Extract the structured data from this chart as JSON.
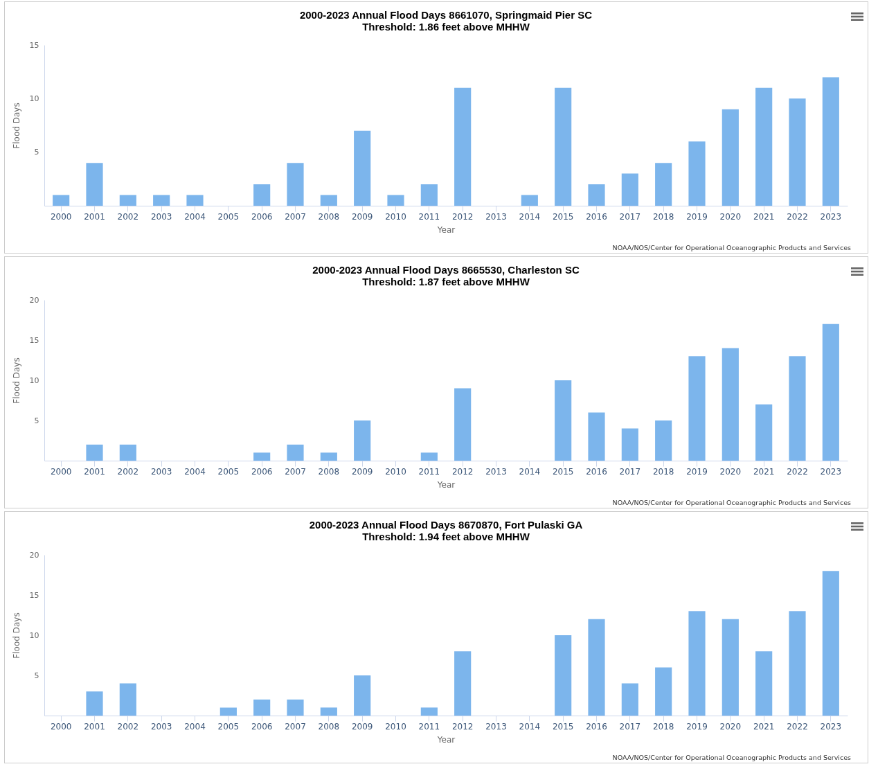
{
  "chart_data": [
    {
      "type": "bar",
      "title": "2000-2023 Annual Flood Days 8661070, Springmaid Pier SC",
      "subtitle": "Threshold: 1.86 feet above MHHW",
      "xlabel": "Year",
      "ylabel": "Flood Days",
      "categories": [
        "2000",
        "2001",
        "2002",
        "2003",
        "2004",
        "2005",
        "2006",
        "2007",
        "2008",
        "2009",
        "2010",
        "2011",
        "2012",
        "2013",
        "2014",
        "2015",
        "2016",
        "2017",
        "2018",
        "2019",
        "2020",
        "2021",
        "2022",
        "2023"
      ],
      "values": [
        1,
        4,
        1,
        1,
        1,
        0,
        2,
        4,
        1,
        7,
        1,
        2,
        11,
        0,
        1,
        11,
        2,
        3,
        4,
        6,
        9,
        11,
        10,
        12
      ],
      "color": "#7cb5ec",
      "ylim": [
        0,
        15
      ],
      "yticks": [
        5,
        10,
        15
      ],
      "annotations": [
        "NOAA/NOS/Center for Operational Oceanographic Products and Services"
      ]
    },
    {
      "type": "bar",
      "title": "2000-2023 Annual Flood Days 8665530, Charleston SC",
      "subtitle": "Threshold: 1.87 feet above MHHW",
      "xlabel": "Year",
      "ylabel": "Flood Days",
      "categories": [
        "2000",
        "2001",
        "2002",
        "2003",
        "2004",
        "2005",
        "2006",
        "2007",
        "2008",
        "2009",
        "2010",
        "2011",
        "2012",
        "2013",
        "2014",
        "2015",
        "2016",
        "2017",
        "2018",
        "2019",
        "2020",
        "2021",
        "2022",
        "2023"
      ],
      "values": [
        0,
        2,
        2,
        0,
        0,
        0,
        1,
        2,
        1,
        5,
        0,
        1,
        9,
        0,
        0,
        10,
        6,
        4,
        5,
        13,
        14,
        7,
        13,
        17
      ],
      "color": "#7cb5ec",
      "ylim": [
        0,
        20
      ],
      "yticks": [
        5,
        10,
        15,
        20
      ],
      "annotations": [
        "NOAA/NOS/Center for Operational Oceanographic Products and Services"
      ]
    },
    {
      "type": "bar",
      "title": "2000-2023 Annual Flood Days 8670870, Fort Pulaski GA",
      "subtitle": "Threshold: 1.94 feet above MHHW",
      "xlabel": "Year",
      "ylabel": "Flood Days",
      "categories": [
        "2000",
        "2001",
        "2002",
        "2003",
        "2004",
        "2005",
        "2006",
        "2007",
        "2008",
        "2009",
        "2010",
        "2011",
        "2012",
        "2013",
        "2014",
        "2015",
        "2016",
        "2017",
        "2018",
        "2019",
        "2020",
        "2021",
        "2022",
        "2023"
      ],
      "values": [
        0,
        3,
        4,
        0,
        0,
        1,
        2,
        2,
        1,
        5,
        0,
        1,
        8,
        0,
        0,
        10,
        12,
        4,
        6,
        13,
        12,
        8,
        13,
        18
      ],
      "color": "#7cb5ec",
      "ylim": [
        0,
        20
      ],
      "yticks": [
        5,
        10,
        15,
        20
      ],
      "annotations": [
        "NOAA/NOS/Center for Operational Oceanographic Products and Services"
      ]
    }
  ]
}
